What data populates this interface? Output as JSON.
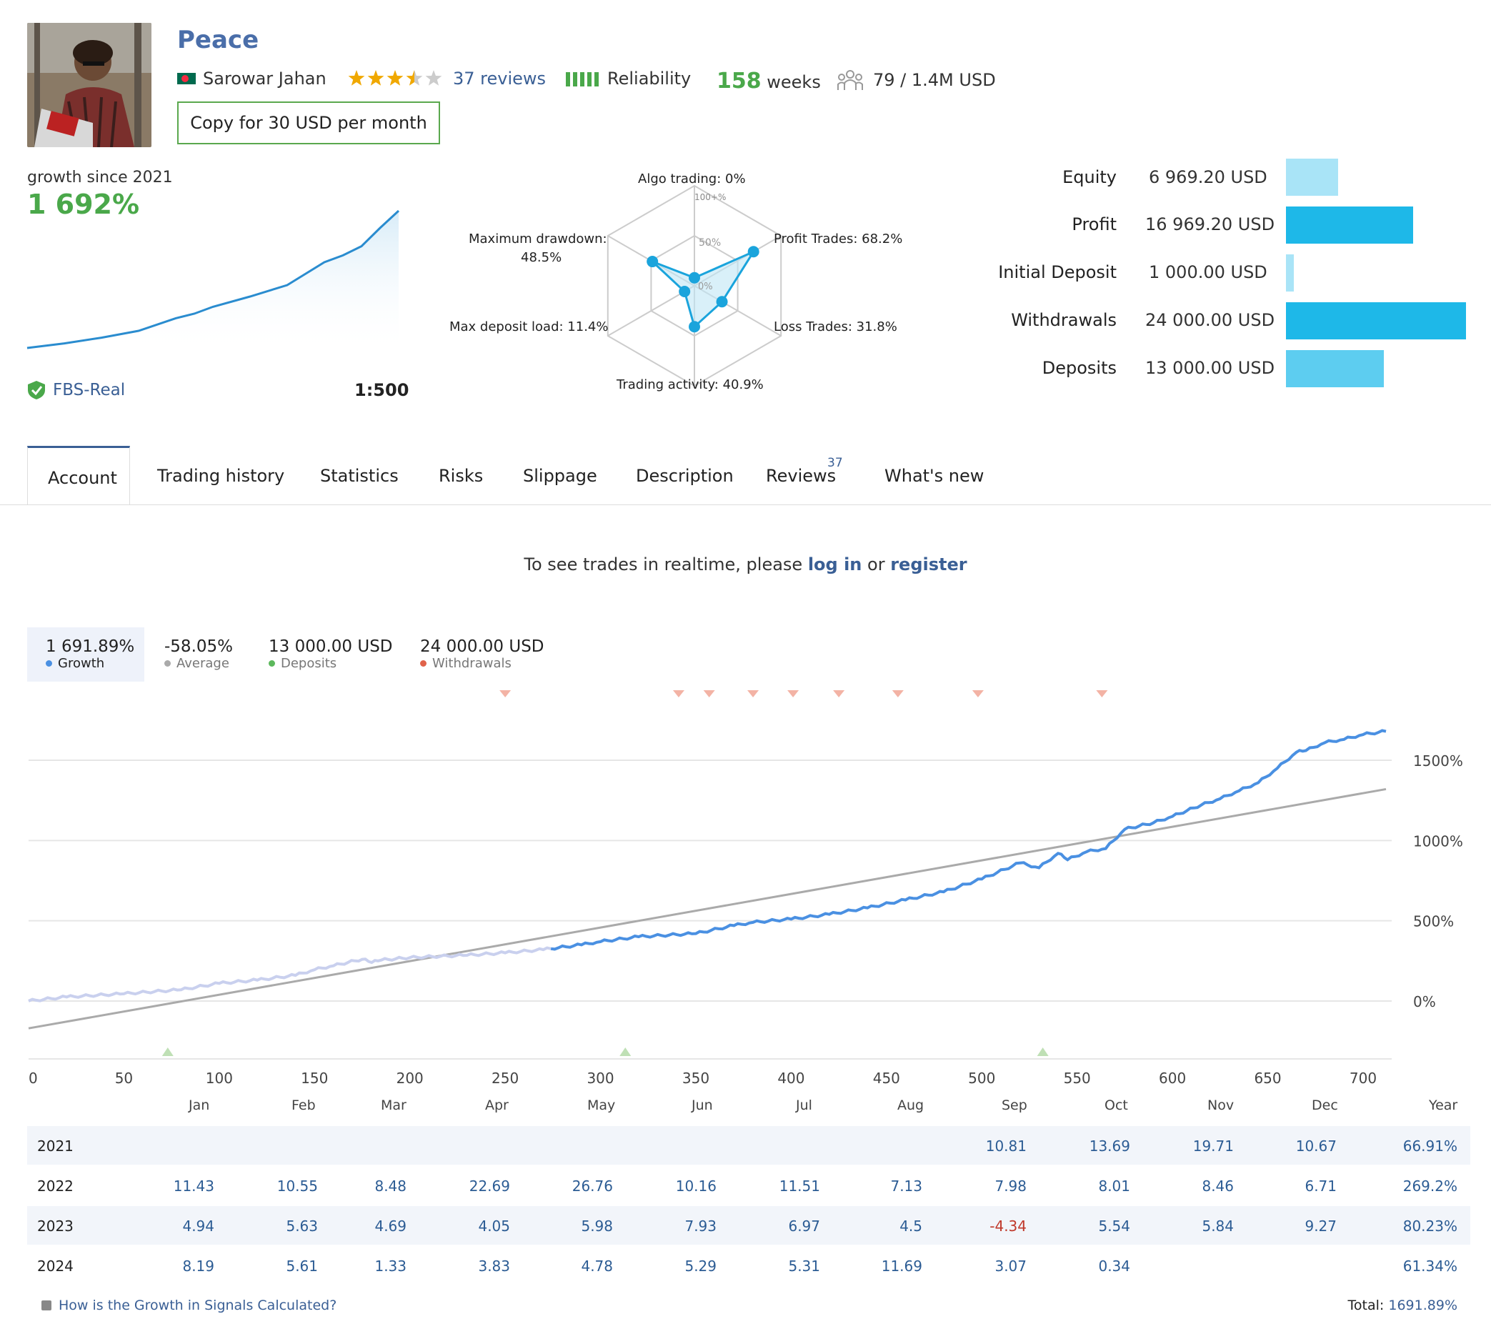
{
  "profile": {
    "name": "Peace",
    "author": "Sarowar Jahan",
    "reviews_label": "37 reviews",
    "rating": 3.5,
    "reliability_label": "Reliability",
    "weeks_value": "158",
    "weeks_unit": "weeks",
    "subscribers": "79  /  1.4M USD",
    "copy_button": "Copy for 30 USD per month",
    "flag_colors": {
      "green": "#006a4e",
      "red": "#f42a41"
    }
  },
  "growth": {
    "label": "growth since 2021",
    "value": "1 692%",
    "broker": "FBS-Real",
    "leverage": "1:500"
  },
  "radar": {
    "algo": "Algo trading: 0%",
    "profit": "Profit Trades: 68.2%",
    "loss": "Loss Trades: 31.8%",
    "activity": "Trading activity: 40.9%",
    "deposit_load": "Max deposit load: 11.4%",
    "drawdown_1": "Maximum drawdown:",
    "drawdown_2": "48.5%",
    "tick_100": "100+%",
    "tick_50": "50%",
    "tick_0": "0%",
    "values": {
      "algo": 0,
      "profit": 68.2,
      "loss": 31.8,
      "activity": 40.9,
      "deposit_load": 11.4,
      "drawdown": 48.5
    }
  },
  "balances": [
    {
      "label": "Equity",
      "value": "6 969.20 USD",
      "color": "#a9e4f7",
      "amount": 6969.2
    },
    {
      "label": "Profit",
      "value": "16 969.20 USD",
      "color": "#1eb8e8",
      "amount": 16969.2
    },
    {
      "label": "Initial Deposit",
      "value": "1 000.00 USD",
      "color": "#a9e4f7",
      "amount": 1000
    },
    {
      "label": "Withdrawals",
      "value": "24 000.00 USD",
      "color": "#1eb8e8",
      "amount": 24000
    },
    {
      "label": "Deposits",
      "value": "13 000.00 USD",
      "color": "#5dcdf0",
      "amount": 13000
    }
  ],
  "tabs": {
    "account": "Account",
    "history": "Trading history",
    "statistics": "Statistics",
    "risks": "Risks",
    "slippage": "Slippage",
    "description": "Description",
    "reviews": "Reviews",
    "reviews_count": "37",
    "whatsnew": "What's new"
  },
  "realtime": {
    "prefix": "To see trades in realtime, please ",
    "login": "log in",
    "or": " or ",
    "register": "register"
  },
  "stats": [
    {
      "value": "1 691.89%",
      "label": "Growth",
      "color": "#4a90e2"
    },
    {
      "value": "-58.05%",
      "label": "Average",
      "color": "#aaaaaa"
    },
    {
      "value": "13 000.00 USD",
      "label": "Deposits",
      "color": "#5cb85c"
    },
    {
      "value": "24 000.00 USD",
      "label": "Withdrawals",
      "color": "#e0624a"
    }
  ],
  "chart_data": {
    "type": "line",
    "xlabel": "",
    "ylabel": "",
    "x_ticks": [
      "0",
      "50",
      "100",
      "150",
      "200",
      "250",
      "300",
      "350",
      "400",
      "450",
      "500",
      "550",
      "600",
      "650",
      "700"
    ],
    "y_ticks": [
      "0%",
      "500%",
      "1000%",
      "1500%"
    ],
    "xlim": [
      0,
      715
    ],
    "ylim": [
      -350,
      1750
    ],
    "grid": true,
    "series": [
      {
        "name": "Growth",
        "x": [
          0,
          20,
          50,
          80,
          100,
          120,
          140,
          150,
          160,
          175,
          180,
          185,
          200,
          230,
          250,
          270,
          290,
          300,
          320,
          350,
          370,
          380,
          400,
          420,
          440,
          460,
          480,
          500,
          520,
          530,
          540,
          545,
          555,
          565,
          575,
          590,
          600,
          615,
          625,
          635,
          645,
          655,
          665,
          670,
          680,
          690,
          700,
          712
        ],
        "y": [
          0,
          25,
          45,
          70,
          110,
          130,
          160,
          195,
          220,
          260,
          240,
          255,
          270,
          285,
          300,
          320,
          350,
          370,
          400,
          420,
          470,
          490,
          510,
          540,
          580,
          630,
          680,
          760,
          860,
          830,
          920,
          880,
          930,
          950,
          1070,
          1110,
          1150,
          1220,
          1260,
          1310,
          1360,
          1450,
          1550,
          1560,
          1610,
          1630,
          1660,
          1680
        ],
        "segment_colors": {
          "light": "#c9d0ee",
          "dark": "#4a90e2"
        },
        "light_until_x": 276
      },
      {
        "name": "",
        "x": [
          0,
          712
        ],
        "y": [
          -170,
          1320
        ],
        "color": "#aaaaaa"
      }
    ],
    "withdrawal_markers_x": [
      250,
      341,
      357,
      380,
      401,
      425,
      456,
      498,
      563
    ],
    "deposit_markers_x": [
      73,
      313,
      532
    ]
  },
  "mini_chart": {
    "x": [
      0,
      10,
      20,
      30,
      40,
      45,
      50,
      60,
      70,
      75,
      80,
      85,
      90,
      95,
      100
    ],
    "y": [
      0,
      8,
      18,
      30,
      52,
      60,
      72,
      90,
      110,
      130,
      150,
      162,
      178,
      210,
      240
    ]
  },
  "monthly": {
    "months": [
      "Jan",
      "Feb",
      "Mar",
      "Apr",
      "May",
      "Jun",
      "Jul",
      "Aug",
      "Sep",
      "Oct",
      "Nov",
      "Dec",
      "Year"
    ],
    "rows": [
      {
        "year": "2021",
        "values": [
          "",
          "",
          "",
          "",
          "",
          "",
          "",
          "",
          "10.81",
          "13.69",
          "19.71",
          "10.67",
          "66.91%"
        ]
      },
      {
        "year": "2022",
        "values": [
          "11.43",
          "10.55",
          "8.48",
          "22.69",
          "26.76",
          "10.16",
          "11.51",
          "7.13",
          "7.98",
          "8.01",
          "8.46",
          "6.71",
          "269.2%"
        ]
      },
      {
        "year": "2023",
        "values": [
          "4.94",
          "5.63",
          "4.69",
          "4.05",
          "5.98",
          "7.93",
          "6.97",
          "4.5",
          "-4.34",
          "5.54",
          "5.84",
          "9.27",
          "80.23%"
        ]
      },
      {
        "year": "2024",
        "values": [
          "8.19",
          "5.61",
          "1.33",
          "3.83",
          "4.78",
          "5.29",
          "5.31",
          "11.69",
          "3.07",
          "0.34",
          "",
          "",
          "61.34%"
        ]
      }
    ],
    "howto": "How is the Growth in Signals Calculated?",
    "total_label": "Total:",
    "total_value": "1691.89%"
  }
}
